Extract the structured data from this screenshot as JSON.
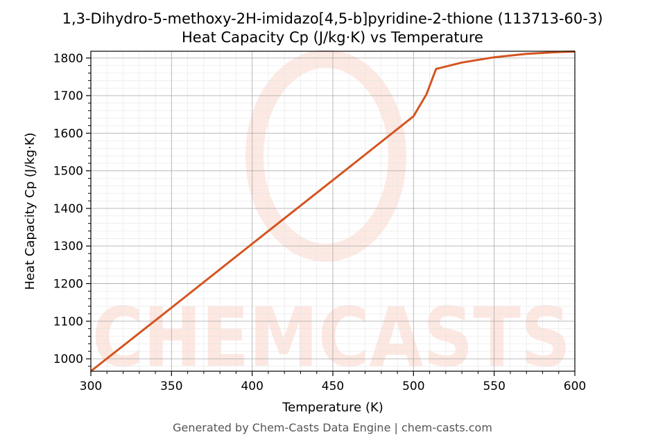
{
  "title_line1": "1,3-Dihydro-5-methoxy-2H-imidazo[4,5-b]pyridine-2-thione (113713-60-3)",
  "title_line2": "Heat Capacity Cp (J/kg·K) vs Temperature",
  "footer": "Generated by Chem-Casts Data Engine | chem-casts.com",
  "watermark": "CHEMCASTS",
  "colors": {
    "line": "#d4541f",
    "watermark": "#fde3dc",
    "grid_major": "#b0b0b0",
    "grid_minor": "#e4e4e4"
  },
  "chart_data": {
    "type": "line",
    "xlabel": "Temperature (K)",
    "ylabel": "Heat Capacity Cp (J/kg·K)",
    "xlim": [
      300,
      600
    ],
    "ylim": [
      967,
      1818
    ],
    "xticks": [
      300,
      350,
      400,
      450,
      500,
      550,
      600
    ],
    "yticks": [
      1000,
      1100,
      1200,
      1300,
      1400,
      1500,
      1600,
      1700,
      1800
    ],
    "grid": true,
    "series": [
      {
        "x": [
          300,
          350,
          400,
          450,
          500,
          508,
          514,
          530,
          550,
          570,
          590,
          600
        ],
        "y": [
          967,
          1136,
          1306,
          1475,
          1645,
          1703,
          1771,
          1788,
          1802,
          1811,
          1816,
          1817
        ]
      }
    ]
  }
}
